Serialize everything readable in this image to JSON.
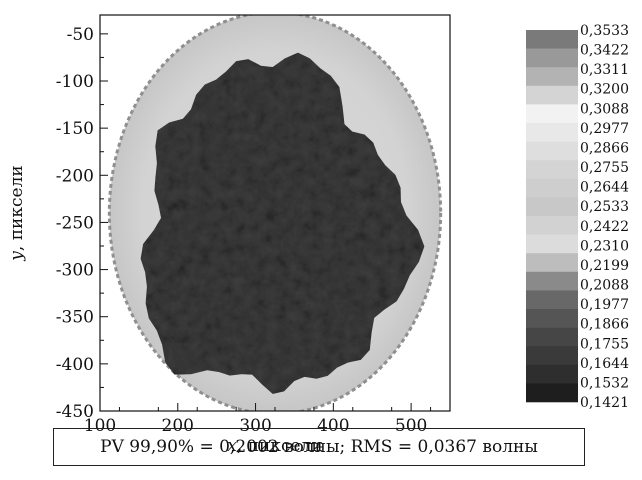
{
  "chart_data": {
    "type": "heatmap",
    "title": "",
    "xlabel_var": "x",
    "xlabel_unit": ", пиксели",
    "ylabel_var": "y",
    "ylabel_unit": ", пиксели",
    "xlim": [
      100,
      550
    ],
    "ylim": [
      -450,
      -30
    ],
    "x_ticks": [
      100,
      200,
      300,
      400,
      500
    ],
    "x_tick_labels": [
      "100",
      "200",
      "300",
      "400",
      "500"
    ],
    "y_ticks": [
      -50,
      -100,
      -150,
      -200,
      -250,
      -300,
      -350,
      -400,
      -450
    ],
    "y_tick_labels": [
      "-50",
      "-100",
      "-150",
      "-200",
      "-250",
      "-300",
      "-350",
      "-400",
      "-450"
    ],
    "disk": {
      "center_x": 325,
      "center_y": -240,
      "radius_x": 213,
      "radius_y": 213
    },
    "inner_region": {
      "center_x": 322,
      "center_y": -258,
      "radius_x": 170,
      "radius_y": 170
    },
    "colorbar": {
      "labels": [
        "0,3533",
        "0,3422",
        "0,3311",
        "0,3200",
        "0,3088",
        "0,2977",
        "0,2866",
        "0,2755",
        "0,2644",
        "0,2533",
        "0,2422",
        "0,2310",
        "0,2199",
        "0,2088",
        "0,1977",
        "0,1866",
        "0,1755",
        "0,1644",
        "0,1532",
        "0,1421"
      ],
      "colors": [
        "#7a7a7a",
        "#999999",
        "#b3b3b3",
        "#d4d4d4",
        "#f2f2f2",
        "#e8e8e8",
        "#dedede",
        "#d4d4d4",
        "#cecece",
        "#c8c8c8",
        "#d2d2d2",
        "#dcdcdc",
        "#bdbdbd",
        "#8a8a8a",
        "#686868",
        "#555555",
        "#464646",
        "#3a3a3a",
        "#2e2e2e",
        "#1e1e1e"
      ]
    },
    "grid": false,
    "legend": "right"
  },
  "caption": "PV 99,90% = 0,2002 волны; RMS = 0,0367 волны"
}
